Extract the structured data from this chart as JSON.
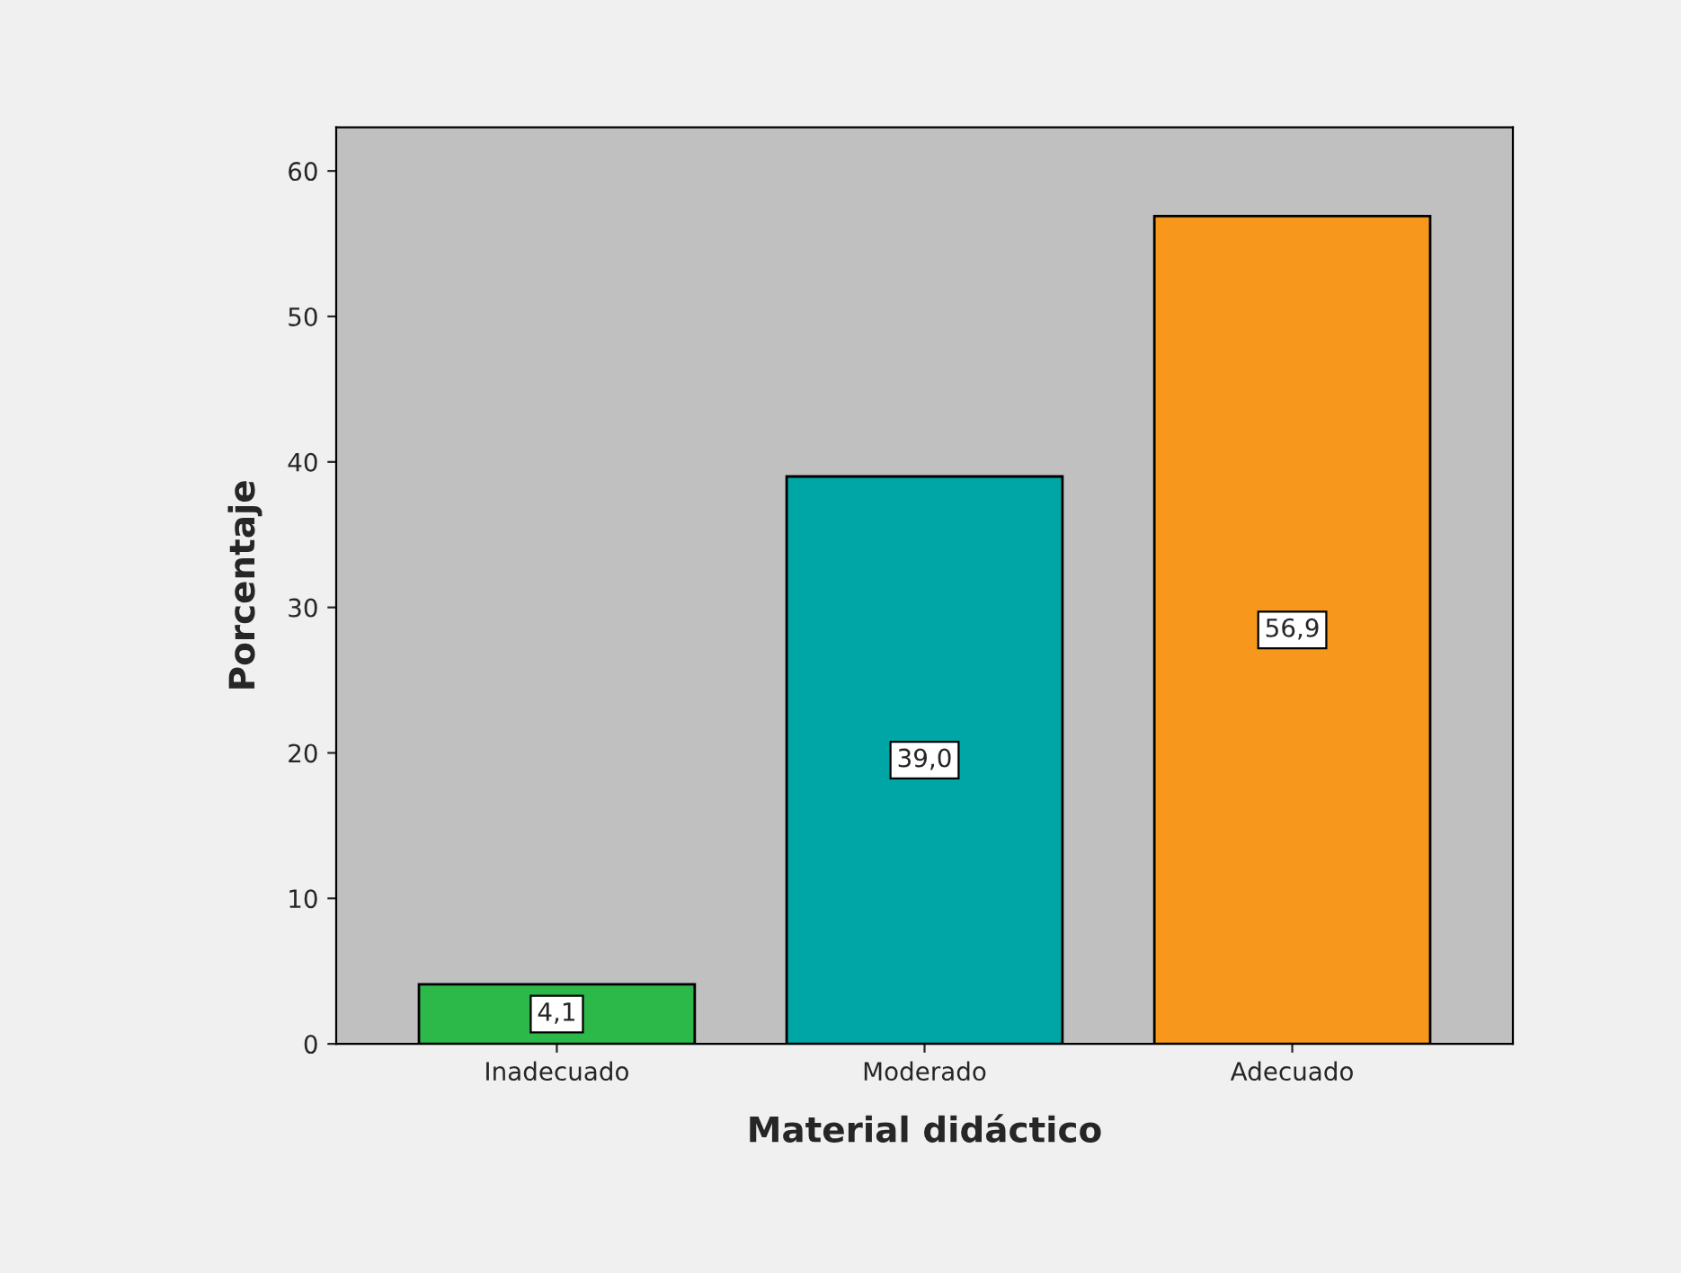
{
  "chart_data": {
    "type": "bar",
    "xlabel": "Material didáctico",
    "ylabel": "Porcentaje",
    "categories": [
      "Inadecuado",
      "Moderado",
      "Adecuado"
    ],
    "values": [
      4.1,
      39.0,
      56.9
    ],
    "value_labels": [
      "4,1",
      "39,0",
      "56,9"
    ],
    "colors": [
      "#2db84a",
      "#00a6a6",
      "#f7981d"
    ],
    "ylim": [
      0,
      63
    ],
    "yticks": [
      0,
      10,
      20,
      30,
      40,
      50,
      60
    ],
    "grid": false
  }
}
